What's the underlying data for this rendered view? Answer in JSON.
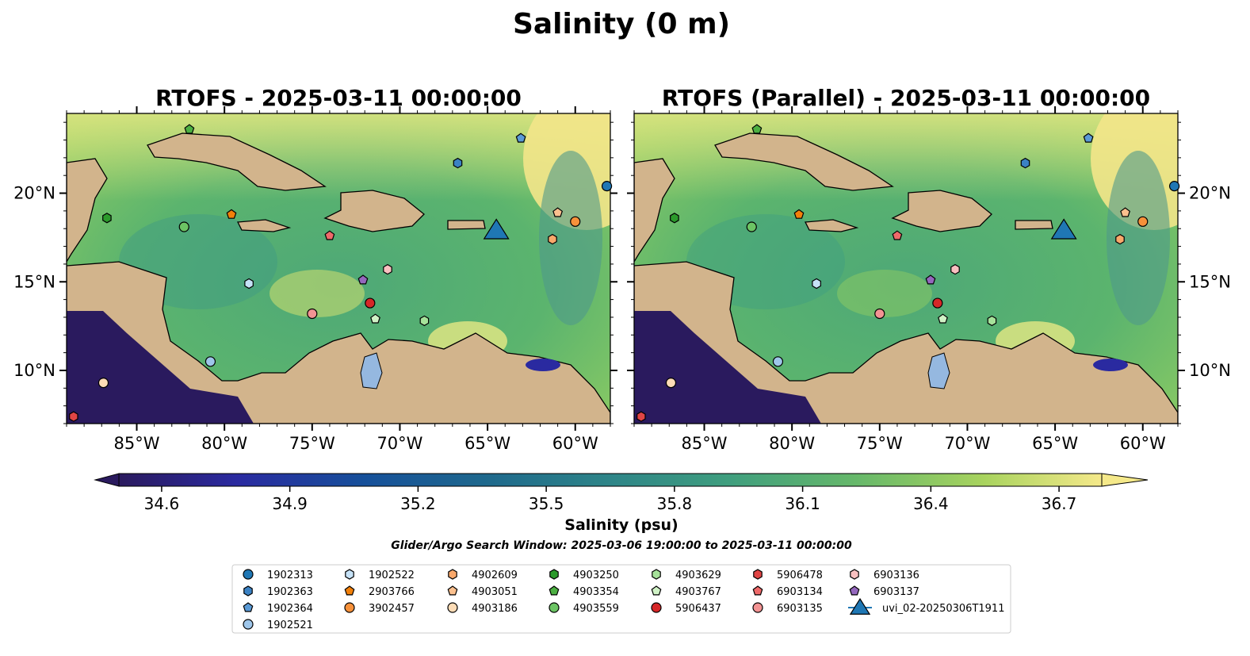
{
  "figure": {
    "suptitle": "Salinity (0 m)",
    "left_title": "RTOFS - 2025-03-11 00:00:00",
    "right_title": "RTOFS (Parallel) - 2025-03-11 00:00:00"
  },
  "axes": {
    "lon_ticks": [
      {
        "value": -85,
        "label": "85°W"
      },
      {
        "value": -80,
        "label": "80°W"
      },
      {
        "value": -75,
        "label": "75°W"
      },
      {
        "value": -70,
        "label": "70°W"
      },
      {
        "value": -65,
        "label": "65°W"
      },
      {
        "value": -60,
        "label": "60°W"
      }
    ],
    "lat_ticks": [
      {
        "value": 10,
        "label": "10°N"
      },
      {
        "value": 15,
        "label": "15°N"
      },
      {
        "value": 20,
        "label": "20°N"
      }
    ],
    "lon_range": [
      -89,
      -58
    ],
    "lat_range": [
      7,
      24.5
    ]
  },
  "colorbar": {
    "label": "Salinity (psu)",
    "range": [
      34.5,
      36.8
    ],
    "extend": "both",
    "colormap": "haline",
    "ticks": [
      "34.6",
      "34.9",
      "35.2",
      "35.5",
      "35.8",
      "36.1",
      "36.4",
      "36.7"
    ]
  },
  "search_window": "Glider/Argo Search Window: 2025-03-06 19:00:00 to 2025-03-11 00:00:00",
  "legend": {
    "columns": [
      [
        {
          "label": "1902313",
          "shape": "circle",
          "color": "#1f77b4"
        },
        {
          "label": "1902363",
          "shape": "hexagon",
          "color": "#3b82c4"
        },
        {
          "label": "1902364",
          "shape": "pentagon",
          "color": "#5a9ad6"
        },
        {
          "label": "1902521",
          "shape": "circle",
          "color": "#9ec6ea"
        }
      ],
      [
        {
          "label": "1902522",
          "shape": "hexagon",
          "color": "#c6e2f7"
        },
        {
          "label": "2903766",
          "shape": "pentagon",
          "color": "#f2800a"
        },
        {
          "label": "3902457",
          "shape": "circle",
          "color": "#f7913a"
        }
      ],
      [
        {
          "label": "4902609",
          "shape": "hexagon",
          "color": "#f9a86b"
        },
        {
          "label": "4903051",
          "shape": "pentagon",
          "color": "#fbc08e"
        },
        {
          "label": "4903186",
          "shape": "circle",
          "color": "#fddcb6"
        }
      ],
      [
        {
          "label": "4903250",
          "shape": "hexagon",
          "color": "#2b9a2b"
        },
        {
          "label": "4903354",
          "shape": "pentagon",
          "color": "#4caf42"
        },
        {
          "label": "4903559",
          "shape": "circle",
          "color": "#6cc464"
        }
      ],
      [
        {
          "label": "4903629",
          "shape": "hexagon",
          "color": "#a6e29a"
        },
        {
          "label": "4903767",
          "shape": "pentagon",
          "color": "#d0f2c6"
        },
        {
          "label": "5906437",
          "shape": "circle",
          "color": "#d62728"
        }
      ],
      [
        {
          "label": "5906478",
          "shape": "hexagon",
          "color": "#e04545"
        },
        {
          "label": "6903134",
          "shape": "pentagon",
          "color": "#ef6a6a"
        },
        {
          "label": "6903135",
          "shape": "circle",
          "color": "#f39393"
        }
      ],
      [
        {
          "label": "6903136",
          "shape": "hexagon",
          "color": "#f9c0c0"
        },
        {
          "label": "6903137",
          "shape": "pentagon",
          "color": "#9467bd"
        },
        {
          "label": "uvi_02-20250306T1911",
          "shape": "triangle",
          "color": "#1f77b4"
        }
      ]
    ]
  },
  "map_markers": [
    {
      "id": "1902313",
      "shape": "circle",
      "color": "#1f77b4",
      "lon": -58.2,
      "lat": 20.4
    },
    {
      "id": "1902363",
      "shape": "hexagon",
      "color": "#3b82c4",
      "lon": -66.7,
      "lat": 21.7
    },
    {
      "id": "1902364",
      "shape": "pentagon",
      "color": "#5a9ad6",
      "lon": -63.1,
      "lat": 23.1
    },
    {
      "id": "1902521",
      "shape": "circle",
      "color": "#9ec6ea",
      "lon": -80.8,
      "lat": 10.5
    },
    {
      "id": "1902522",
      "shape": "hexagon",
      "color": "#c6e2f7",
      "lon": -78.6,
      "lat": 14.9
    },
    {
      "id": "2903766",
      "shape": "pentagon",
      "color": "#f2800a",
      "lon": -79.6,
      "lat": 18.8
    },
    {
      "id": "3902457",
      "shape": "circle",
      "color": "#f7913a",
      "lon": -60.0,
      "lat": 18.4
    },
    {
      "id": "4902609",
      "shape": "hexagon",
      "color": "#f9a86b",
      "lon": -61.3,
      "lat": 17.4
    },
    {
      "id": "4903051",
      "shape": "pentagon",
      "color": "#fbc08e",
      "lon": -61.0,
      "lat": 18.9
    },
    {
      "id": "4903186",
      "shape": "circle",
      "color": "#fddcb6",
      "lon": -86.9,
      "lat": 9.3
    },
    {
      "id": "4903250",
      "shape": "hexagon",
      "color": "#2b9a2b",
      "lon": -86.7,
      "lat": 18.6
    },
    {
      "id": "4903354",
      "shape": "pentagon",
      "color": "#4caf42",
      "lon": -82.0,
      "lat": 23.6
    },
    {
      "id": "4903559",
      "shape": "circle",
      "color": "#6cc464",
      "lon": -82.3,
      "lat": 18.1
    },
    {
      "id": "4903629",
      "shape": "hexagon",
      "color": "#a6e29a",
      "lon": -68.6,
      "lat": 12.8
    },
    {
      "id": "4903767",
      "shape": "pentagon",
      "color": "#d0f2c6",
      "lon": -71.4,
      "lat": 12.9
    },
    {
      "id": "5906437",
      "shape": "circle",
      "color": "#d62728",
      "lon": -71.7,
      "lat": 13.8
    },
    {
      "id": "5906478",
      "shape": "hexagon",
      "color": "#e04545",
      "lon": -88.6,
      "lat": 7.4
    },
    {
      "id": "6903134",
      "shape": "pentagon",
      "color": "#ef6a6a",
      "lon": -74.0,
      "lat": 17.6
    },
    {
      "id": "6903135",
      "shape": "circle",
      "color": "#f39393",
      "lon": -75.0,
      "lat": 13.2
    },
    {
      "id": "6903136",
      "shape": "hexagon",
      "color": "#f9c0c0",
      "lon": -70.7,
      "lat": 15.7
    },
    {
      "id": "6903137",
      "shape": "pentagon",
      "color": "#9467bd",
      "lon": -72.1,
      "lat": 15.1
    },
    {
      "id": "uvi_02-20250306T1911",
      "shape": "triangle",
      "color": "#1f77b4",
      "lon": -64.5,
      "lat": 17.9
    }
  ]
}
